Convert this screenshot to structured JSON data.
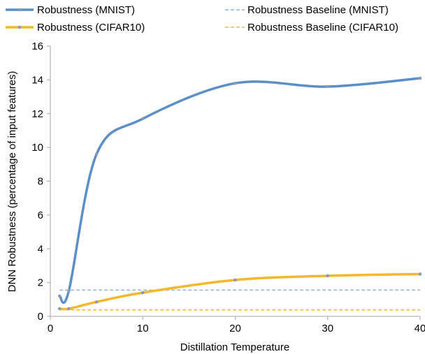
{
  "chart_data": {
    "type": "line",
    "title": "",
    "xlabel": "Distillation Temperature",
    "ylabel": "DNN Robustness (percentage of input features)",
    "xlim": [
      0,
      40
    ],
    "ylim": [
      0,
      16
    ],
    "xticks": [
      0,
      10,
      20,
      30,
      40
    ],
    "yticks": [
      0,
      2,
      4,
      6,
      8,
      10,
      12,
      14,
      16
    ],
    "grid": false,
    "legend_position": "top",
    "series": [
      {
        "name": "Robustness (MNIST)",
        "style": "solid-markers",
        "color": "#5b8fc7",
        "x": [
          1,
          2,
          5,
          10,
          20,
          30,
          40
        ],
        "y": [
          1.2,
          1.5,
          9.6,
          11.7,
          13.8,
          13.6,
          14.1
        ]
      },
      {
        "name": "Robustness (CIFAR10)",
        "style": "solid-markers",
        "color": "#f5b82a",
        "x": [
          1,
          2,
          5,
          10,
          20,
          30,
          40
        ],
        "y": [
          0.45,
          0.45,
          0.85,
          1.4,
          2.15,
          2.4,
          2.5
        ]
      },
      {
        "name": "Robustness Baseline (MNIST)",
        "style": "dashed",
        "color": "#8ab4e0",
        "x": [
          1,
          40
        ],
        "y": [
          1.55,
          1.55
        ]
      },
      {
        "name": "Robustness Baseline (CIFAR10)",
        "style": "dashed",
        "color": "#f5b82a",
        "x": [
          1,
          40
        ],
        "y": [
          0.38,
          0.38
        ]
      }
    ]
  }
}
